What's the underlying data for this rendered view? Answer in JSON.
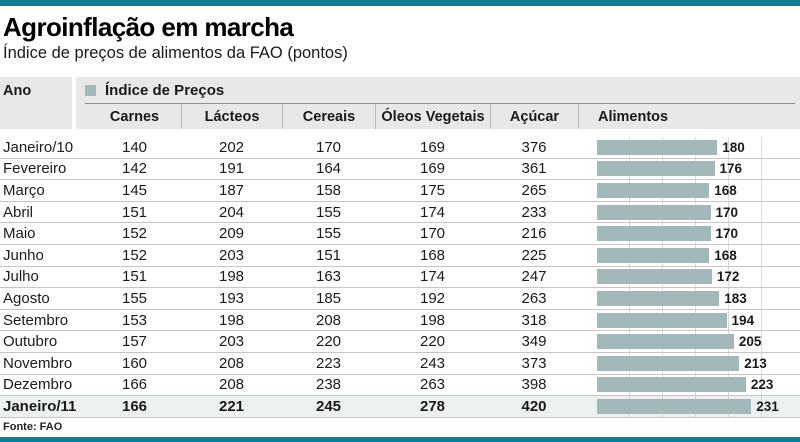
{
  "title": "Agroinflação em marcha",
  "subtitle": "Índice de preços de alimentos da FAO (pontos)",
  "source": "Fonte: FAO",
  "colors": {
    "accent_teal": "#0c7f93",
    "bar_fill": "#a3b8bb",
    "header_bg": "#e8e8e8",
    "highlight_row_bg": "#edf0f1"
  },
  "table": {
    "year_header": "Ano",
    "group_header": "Índice de Preços",
    "legend_icon": "price-index-swatch",
    "columns": [
      "Carnes",
      "Lácteos",
      "Cereais",
      "Óleos Vegetais",
      "Açúcar",
      "Alimentos"
    ]
  },
  "chart_data": {
    "type": "table",
    "title": "Agroinflação em marcha",
    "subtitle": "Índice de preços de alimentos da FAO (pontos)",
    "row_header": "Ano",
    "group_header": "Índice de Preços",
    "columns": [
      "Carnes",
      "Lácteos",
      "Cereais",
      "Óleos Vegetais",
      "Açúcar",
      "Alimentos"
    ],
    "alimentos_rendered_as": "bar",
    "bar_axis_max": 295,
    "bar_gridline_step": 50,
    "rows": [
      {
        "label": "Janeiro/10",
        "values": [
          140,
          202,
          170,
          169,
          376
        ],
        "alimentos": 180,
        "highlight": false
      },
      {
        "label": "Fevereiro",
        "values": [
          142,
          191,
          164,
          169,
          361
        ],
        "alimentos": 176,
        "highlight": false
      },
      {
        "label": "Março",
        "values": [
          145,
          187,
          158,
          175,
          265
        ],
        "alimentos": 168,
        "highlight": false
      },
      {
        "label": "Abril",
        "values": [
          151,
          204,
          155,
          174,
          233
        ],
        "alimentos": 170,
        "highlight": false
      },
      {
        "label": "Maio",
        "values": [
          152,
          209,
          155,
          170,
          216
        ],
        "alimentos": 170,
        "highlight": false
      },
      {
        "label": "Junho",
        "values": [
          152,
          203,
          151,
          168,
          225
        ],
        "alimentos": 168,
        "highlight": false
      },
      {
        "label": "Julho",
        "values": [
          151,
          198,
          163,
          174,
          247
        ],
        "alimentos": 172,
        "highlight": false
      },
      {
        "label": "Agosto",
        "values": [
          155,
          193,
          185,
          192,
          263
        ],
        "alimentos": 183,
        "highlight": false
      },
      {
        "label": "Setembro",
        "values": [
          153,
          198,
          208,
          198,
          318
        ],
        "alimentos": 194,
        "highlight": false
      },
      {
        "label": "Outubro",
        "values": [
          157,
          203,
          220,
          220,
          349
        ],
        "alimentos": 205,
        "highlight": false
      },
      {
        "label": "Novembro",
        "values": [
          160,
          208,
          223,
          243,
          373
        ],
        "alimentos": 213,
        "highlight": false
      },
      {
        "label": "Dezembro",
        "values": [
          166,
          208,
          238,
          263,
          398
        ],
        "alimentos": 223,
        "highlight": false
      },
      {
        "label": "Janeiro/11",
        "values": [
          166,
          221,
          245,
          278,
          420
        ],
        "alimentos": 231,
        "highlight": true
      }
    ],
    "source": "Fonte: FAO"
  }
}
